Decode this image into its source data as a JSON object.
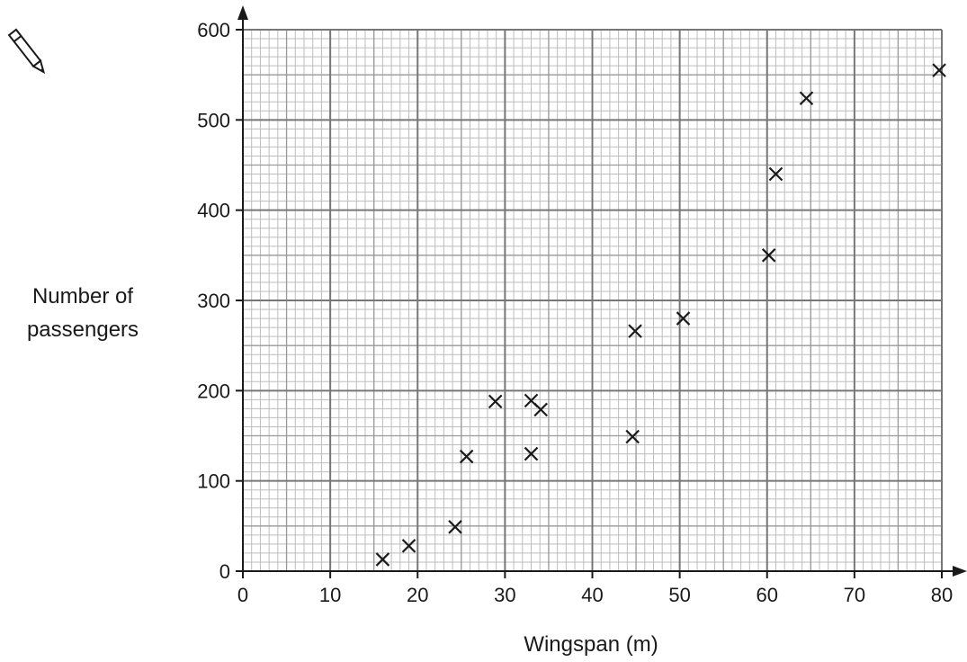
{
  "chart_data": {
    "type": "scatter",
    "title": "",
    "xlabel": "Wingspan (m)",
    "ylabel": [
      "Number of",
      "passengers"
    ],
    "xlim": [
      0,
      80
    ],
    "ylim": [
      0,
      600
    ],
    "x_ticks": [
      0,
      10,
      20,
      30,
      40,
      50,
      60,
      70,
      80
    ],
    "y_ticks": [
      0,
      100,
      200,
      300,
      400,
      500,
      600
    ],
    "grid": true,
    "grid_minor_step": 1,
    "marker": "cross",
    "colors": {
      "ink": "#1a1a1a",
      "grid_major": "#777777",
      "grid_minor": "#bdbdbd"
    },
    "icon": "pencil-icon",
    "points": [
      {
        "x": 16,
        "y": 13
      },
      {
        "x": 19,
        "y": 28
      },
      {
        "x": 24.3,
        "y": 49
      },
      {
        "x": 25.6,
        "y": 127
      },
      {
        "x": 28.9,
        "y": 188
      },
      {
        "x": 33,
        "y": 130
      },
      {
        "x": 33,
        "y": 189
      },
      {
        "x": 34.1,
        "y": 179
      },
      {
        "x": 44.6,
        "y": 149
      },
      {
        "x": 44.9,
        "y": 266
      },
      {
        "x": 50.4,
        "y": 280
      },
      {
        "x": 60.2,
        "y": 350
      },
      {
        "x": 61,
        "y": 440
      },
      {
        "x": 64.5,
        "y": 524
      },
      {
        "x": 79.7,
        "y": 555
      }
    ]
  }
}
